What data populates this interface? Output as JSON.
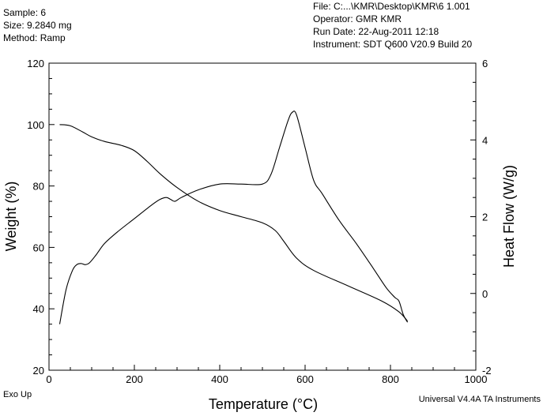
{
  "header": {
    "left": [
      "Sample: 6",
      "Size:  9.2840 mg",
      "Method: Ramp"
    ],
    "right": [
      "File: C:...\\KMR\\Desktop\\KMR\\6 1.001",
      "Operator: GMR KMR",
      "Run Date: 22-Aug-2011 12:18",
      "Instrument: SDT Q600 V20.9 Build 20"
    ]
  },
  "footer": {
    "exo": "Exo Up",
    "software": "Universal V4.4A TA Instruments"
  },
  "chart_data": {
    "type": "line",
    "xlabel": "Temperature (°C)",
    "ylabel": "Weight (%)",
    "y2label": "Heat Flow (W/g)",
    "xlim": [
      0,
      1000
    ],
    "ylim": [
      20,
      120
    ],
    "y2lim": [
      -2,
      6
    ],
    "x_ticks": [
      "0",
      "200",
      "400",
      "600",
      "800",
      "1000"
    ],
    "y_ticks": [
      "20",
      "40",
      "60",
      "80",
      "100",
      "120"
    ],
    "y2_ticks": [
      "-2",
      "0",
      "2",
      "4",
      "6"
    ],
    "series": [
      {
        "axis": "left",
        "x": [
          25,
          50,
          80,
          100,
          130,
          170,
          200,
          230,
          260,
          300,
          350,
          400,
          450,
          500,
          530,
          550,
          580,
          620,
          700,
          780,
          820,
          840
        ],
        "y": [
          100,
          99.6,
          97.5,
          96,
          94.5,
          93.2,
          91.5,
          88,
          84,
          79.5,
          75,
          72,
          70,
          68,
          65.5,
          62,
          56.5,
          52.5,
          47.5,
          42.5,
          39,
          36
        ]
      },
      {
        "axis": "right",
        "x": [
          25,
          40,
          55,
          65,
          75,
          85,
          95,
          110,
          130,
          160,
          200,
          240,
          260,
          275,
          285,
          295,
          310,
          350,
          400,
          450,
          500,
          520,
          540,
          560,
          570,
          580,
          600,
          620,
          640,
          680,
          720,
          760,
          790,
          810,
          820,
          830,
          840
        ],
        "y": [
          -0.8,
          0.1,
          0.6,
          0.75,
          0.78,
          0.75,
          0.8,
          1.0,
          1.3,
          1.6,
          1.95,
          2.3,
          2.45,
          2.5,
          2.45,
          2.4,
          2.5,
          2.7,
          2.85,
          2.85,
          2.85,
          3.1,
          3.8,
          4.5,
          4.72,
          4.65,
          3.8,
          2.95,
          2.6,
          1.9,
          1.3,
          0.65,
          0.15,
          -0.1,
          -0.2,
          -0.55,
          -0.75
        ]
      }
    ]
  }
}
